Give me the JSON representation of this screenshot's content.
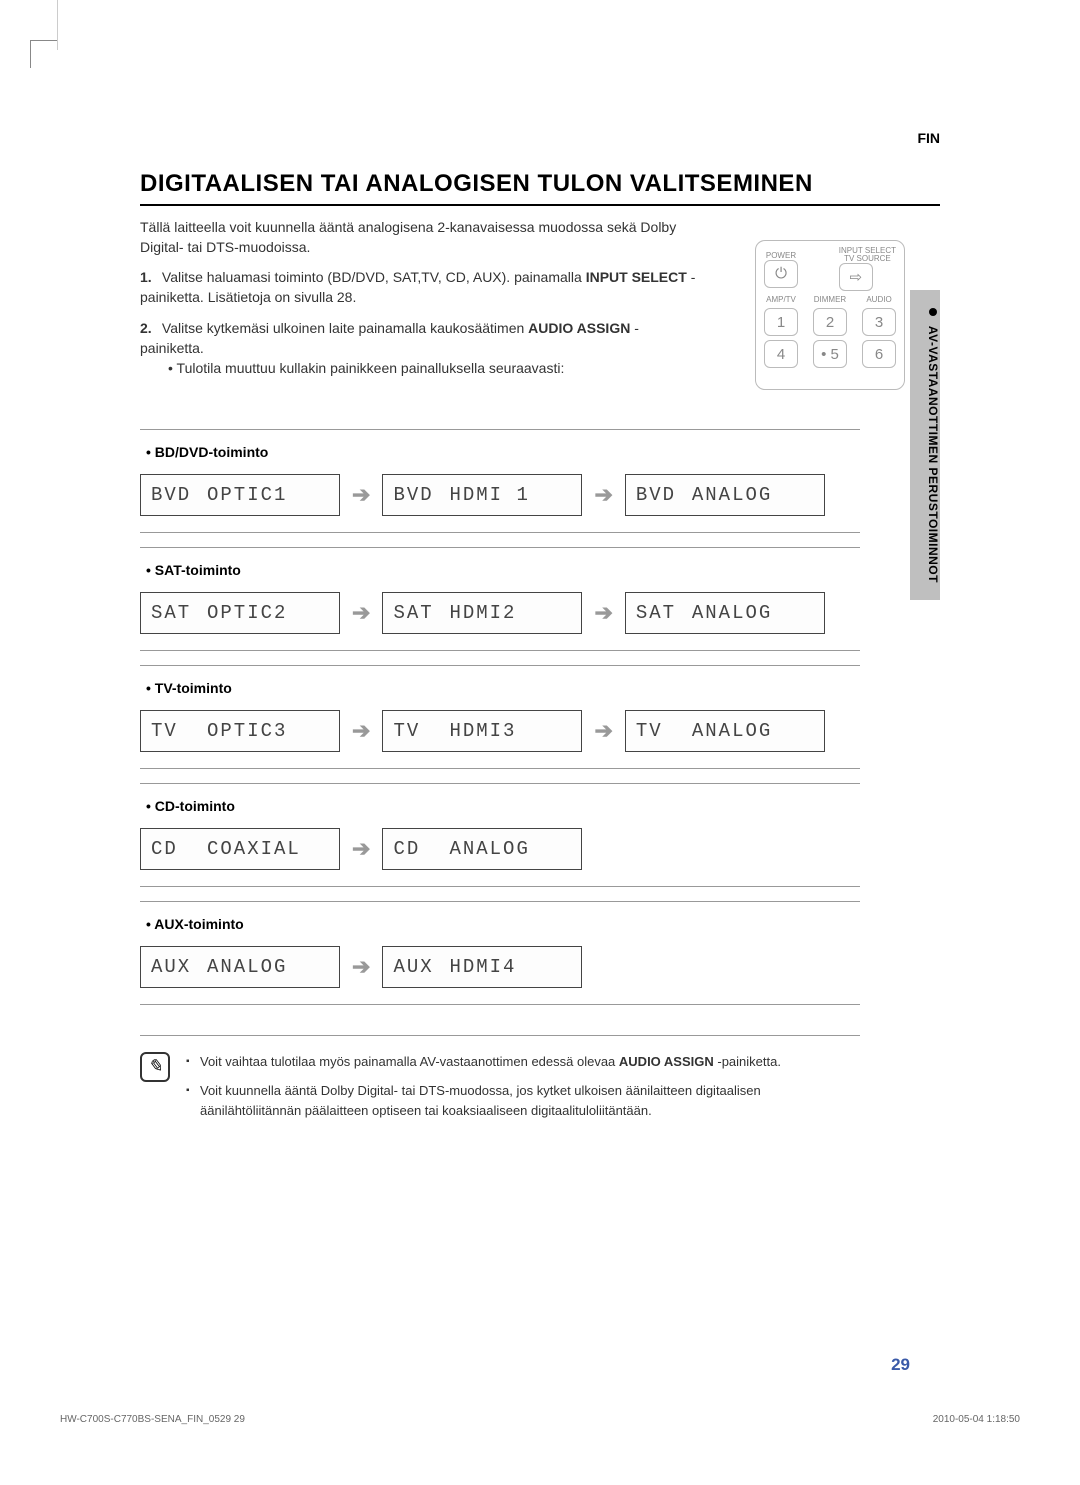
{
  "lang_code": "FIN",
  "side_tab": "AV-VASTAANOTTIMEN PERUSTOIMINNOT",
  "title": "DIGITAALISEN TAI ANALOGISEN TULON VALITSEMINEN",
  "intro": "Tällä laitteella voit kuunnella ääntä analogisena 2-kanavaisessa muodossa sekä Dolby Digital- tai DTS-muodoissa.",
  "steps": [
    {
      "num": "1.",
      "text_before": "Valitse haluamasi toiminto (BD/DVD, SAT,TV, CD, AUX). painamalla ",
      "bold": "INPUT SELECT",
      "text_after": " -painiketta. Lisätietoja on sivulla 28."
    },
    {
      "num": "2.",
      "text_before": "Valitse kytkemäsi ulkoinen laite painamalla kaukosäätimen ",
      "bold": "AUDIO ASSIGN",
      "text_after": " -painiketta.",
      "sub": "Tulotila muuttuu kullakin painikkeen painalluksella seuraavasti:"
    }
  ],
  "remote": {
    "labels": {
      "power": "POWER",
      "input": "INPUT SELECT\nTV SOURCE",
      "amptv": "AMP/TV",
      "dimmer": "DIMMER",
      "audio": "AUDIO"
    },
    "power_glyph": "⏻",
    "input_glyph": "⇨",
    "nums": [
      "1",
      "2",
      "3",
      "4",
      "• 5",
      "6"
    ]
  },
  "functions": [
    {
      "name": "BD/DVD-toiminto",
      "displays": [
        {
          "src": "BVD",
          "mode": "OPTIC1"
        },
        {
          "src": "BVD",
          "mode": "HDMI 1"
        },
        {
          "src": "BVD",
          "mode": "ANALOG"
        }
      ]
    },
    {
      "name": "SAT-toiminto",
      "displays": [
        {
          "src": "SAT",
          "mode": "OPTIC2"
        },
        {
          "src": "SAT",
          "mode": "HDMI2"
        },
        {
          "src": "SAT",
          "mode": "ANALOG"
        }
      ]
    },
    {
      "name": "TV-toiminto",
      "displays": [
        {
          "src": "TV",
          "mode": "OPTIC3"
        },
        {
          "src": "TV",
          "mode": "HDMI3"
        },
        {
          "src": "TV",
          "mode": "ANALOG"
        }
      ]
    },
    {
      "name": "CD-toiminto",
      "displays": [
        {
          "src": "CD",
          "mode": "COAXIAL"
        },
        {
          "src": "CD",
          "mode": "ANALOG"
        }
      ]
    },
    {
      "name": "AUX-toiminto",
      "displays": [
        {
          "src": "AUX",
          "mode": "ANALOG"
        },
        {
          "src": "AUX",
          "mode": "HDMI4"
        }
      ]
    }
  ],
  "arrow_glyph": "➔",
  "notes": [
    {
      "pre": "Voit vaihtaa tulotilaa myös painamalla AV-vastaanottimen edessä olevaa ",
      "bold": "AUDIO ASSIGN",
      "post": " -painiketta."
    },
    {
      "pre": "Voit kuunnella ääntä Dolby Digital- tai DTS-muodossa, jos kytket ulkoisen äänilaitteen digitaalisen äänilähtöliitännän päälaitteen optiseen tai koaksiaaliseen digitaalituloliitäntään.",
      "bold": "",
      "post": ""
    }
  ],
  "page_number": "29",
  "footer_left": "HW-C700S-C770BS-SENA_FIN_0529   29",
  "footer_right": "2010-05-04    1:18:50"
}
